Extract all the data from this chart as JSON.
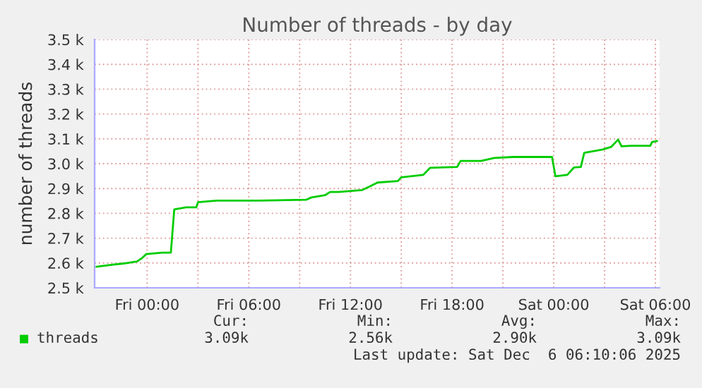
{
  "chart_data": {
    "type": "line",
    "title": "Number of threads - by day",
    "ylabel": "number of threads",
    "series": [
      {
        "name": "threads",
        "color": "#00cc00",
        "x": [
          "2025-12-04T21:00",
          "2025-12-04T21:54",
          "2025-12-04T22:36",
          "2025-12-04T23:24",
          "2025-12-04T23:40",
          "2025-12-04T23:57",
          "2025-12-05T00:54",
          "2025-12-05T01:24",
          "2025-12-05T01:36",
          "2025-12-05T02:18",
          "2025-12-05T02:54",
          "2025-12-05T03:00",
          "2025-12-05T04:06",
          "2025-12-05T06:36",
          "2025-12-05T09:24",
          "2025-12-05T09:42",
          "2025-12-05T10:30",
          "2025-12-05T10:48",
          "2025-12-05T11:18",
          "2025-12-05T12:42",
          "2025-12-05T13:06",
          "2025-12-05T13:36",
          "2025-12-05T14:48",
          "2025-12-05T15:00",
          "2025-12-05T16:18",
          "2025-12-05T16:42",
          "2025-12-05T18:18",
          "2025-12-05T18:30",
          "2025-12-05T19:42",
          "2025-12-05T20:30",
          "2025-12-05T21:36",
          "2025-12-05T23:54",
          "2025-12-06T00:06",
          "2025-12-06T00:48",
          "2025-12-06T01:12",
          "2025-12-06T01:36",
          "2025-12-06T01:48",
          "2025-12-06T02:54",
          "2025-12-06T03:24",
          "2025-12-06T03:48",
          "2025-12-06T04:00",
          "2025-12-06T04:36",
          "2025-12-06T05:42",
          "2025-12-06T05:48",
          "2025-12-06T06:06"
        ],
        "values": [
          2.585,
          2.593,
          2.598,
          2.606,
          2.618,
          2.636,
          2.642,
          2.642,
          2.816,
          2.824,
          2.824,
          2.845,
          2.851,
          2.851,
          2.855,
          2.864,
          2.873,
          2.886,
          2.886,
          2.894,
          2.907,
          2.924,
          2.93,
          2.945,
          2.955,
          2.983,
          2.987,
          3.011,
          3.011,
          3.023,
          3.027,
          3.027,
          2.949,
          2.955,
          2.985,
          2.987,
          3.044,
          3.057,
          3.068,
          3.097,
          3.07,
          3.072,
          3.072,
          3.087,
          3.091
        ]
      }
    ],
    "xlim": [
      "2025-12-04T20:54",
      "2025-12-06T06:15"
    ],
    "xticks": [
      {
        "value": "2025-12-05T00:00",
        "label": "Fri 00:00"
      },
      {
        "value": "2025-12-05T03:00",
        "label": null
      },
      {
        "value": "2025-12-05T06:00",
        "label": "Fri 06:00"
      },
      {
        "value": "2025-12-05T09:00",
        "label": null
      },
      {
        "value": "2025-12-05T12:00",
        "label": "Fri 12:00"
      },
      {
        "value": "2025-12-05T15:00",
        "label": null
      },
      {
        "value": "2025-12-05T18:00",
        "label": "Fri 18:00"
      },
      {
        "value": "2025-12-05T21:00",
        "label": null
      },
      {
        "value": "2025-12-06T00:00",
        "label": "Sat 00:00"
      },
      {
        "value": "2025-12-06T03:00",
        "label": null
      },
      {
        "value": "2025-12-06T06:00",
        "label": "Sat 06:00"
      }
    ],
    "ylim": [
      2.5,
      3.5
    ],
    "yticks": [
      {
        "value": 2.5,
        "label": "2.5 k"
      },
      {
        "value": 2.6,
        "label": "2.6 k"
      },
      {
        "value": 2.7,
        "label": "2.7 k"
      },
      {
        "value": 2.8,
        "label": "2.8 k"
      },
      {
        "value": 2.9,
        "label": "2.9 k"
      },
      {
        "value": 3.0,
        "label": "3.0 k"
      },
      {
        "value": 3.1,
        "label": "3.1 k"
      },
      {
        "value": 3.2,
        "label": "3.2 k"
      },
      {
        "value": 3.3,
        "label": "3.3 k"
      },
      {
        "value": 3.4,
        "label": "3.4 k"
      },
      {
        "value": 3.5,
        "label": "3.5 k"
      }
    ],
    "grid": true,
    "legend": "bottom",
    "marker": "none",
    "line_style": "solid",
    "annotations": [
      "Cur:",
      "3.09k",
      "Min:",
      "2.56k",
      "Avg:",
      "2.90k",
      "Max:",
      "3.09k",
      "Last update: Sat Dec  6 06:10:06 2025"
    ]
  }
}
